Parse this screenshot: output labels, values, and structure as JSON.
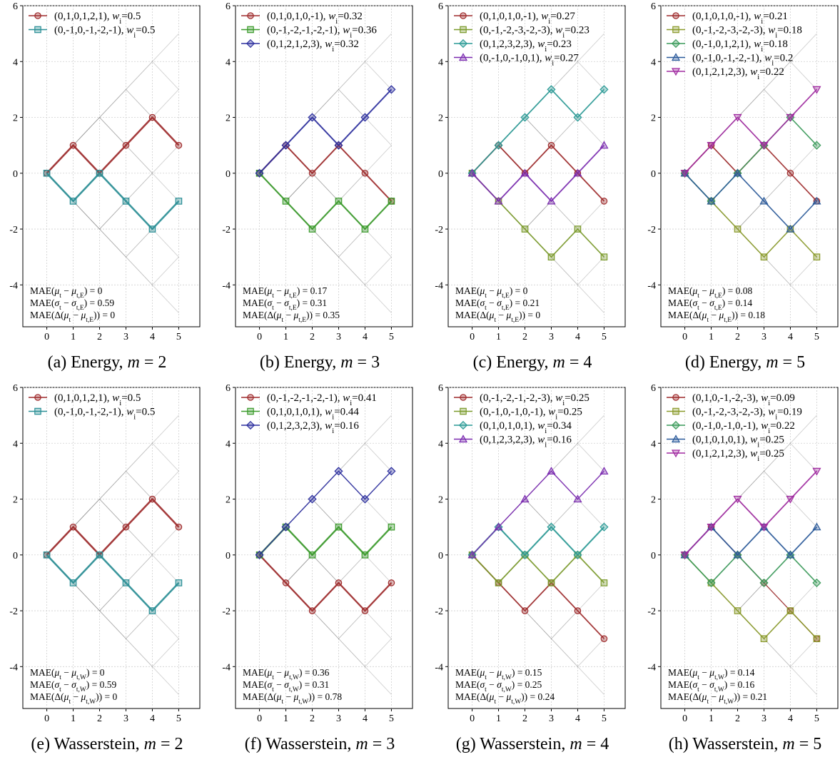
{
  "chart_data": [
    {
      "type": "line",
      "caption": "(a) Energy, m = 2",
      "x": [
        0,
        1,
        2,
        3,
        4,
        5
      ],
      "ylim": [
        -5.5,
        6
      ],
      "yticks": [
        -4,
        -2,
        0,
        2,
        4,
        6
      ],
      "series": [
        {
          "name": "(0,1,0,1,2,1), w_i=0.5",
          "path": [
            0,
            1,
            0,
            1,
            2,
            1
          ],
          "weight": 0.5,
          "color": "#9e2a2b",
          "marker": "circle"
        },
        {
          "name": "(0,-1,0,-1,-2,-1), w_i=0.5",
          "path": [
            0,
            -1,
            0,
            -1,
            -2,
            -1
          ],
          "weight": 0.5,
          "color": "#2a8f96",
          "marker": "square"
        }
      ],
      "annotations": [
        "MAE(μ_t − μ_t,E) = 0",
        "MAE(σ_t − σ_t,E) = 0.59",
        "MAE(Δ(μ_t − μ_t,E)) = 0"
      ]
    },
    {
      "type": "line",
      "caption": "(b) Energy, m = 3",
      "x": [
        0,
        1,
        2,
        3,
        4,
        5
      ],
      "ylim": [
        -5.5,
        6
      ],
      "yticks": [
        -4,
        -2,
        0,
        2,
        4,
        6
      ],
      "series": [
        {
          "name": "(0,1,0,1,0,-1), w_i=0.32",
          "path": [
            0,
            1,
            0,
            1,
            0,
            -1
          ],
          "weight": 0.32,
          "color": "#9e2a2b",
          "marker": "circle"
        },
        {
          "name": "(0,-1,-2,-1,-2,-1), w_i=0.36",
          "path": [
            0,
            -1,
            -2,
            -1,
            -2,
            -1
          ],
          "weight": 0.36,
          "color": "#3a9a2a",
          "marker": "square"
        },
        {
          "name": "(0,1,2,1,2,3), w_i=0.32",
          "path": [
            0,
            1,
            2,
            1,
            2,
            3
          ],
          "weight": 0.32,
          "color": "#2c2f9e",
          "marker": "diamond"
        }
      ],
      "annotations": [
        "MAE(μ_t − μ_t,E) = 0.17",
        "MAE(σ_t − σ_t,E) = 0.31",
        "MAE(Δ(μ_t − μ_t,E)) = 0.35"
      ]
    },
    {
      "type": "line",
      "caption": "(c) Energy, m = 4",
      "x": [
        0,
        1,
        2,
        3,
        4,
        5
      ],
      "ylim": [
        -5.5,
        6
      ],
      "yticks": [
        -4,
        -2,
        0,
        2,
        4,
        6
      ],
      "series": [
        {
          "name": "(0,1,0,1,0,-1), w_i=0.27",
          "path": [
            0,
            1,
            0,
            1,
            0,
            -1
          ],
          "weight": 0.27,
          "color": "#9e2a2b",
          "marker": "circle"
        },
        {
          "name": "(0,-1,-2,-3,-2,-3), w_i=0.23",
          "path": [
            0,
            -1,
            -2,
            -3,
            -2,
            -3
          ],
          "weight": 0.23,
          "color": "#7a9a2a",
          "marker": "square"
        },
        {
          "name": "(0,1,2,3,2,3), w_i=0.23",
          "path": [
            0,
            1,
            2,
            3,
            2,
            3
          ],
          "weight": 0.23,
          "color": "#2a9a96",
          "marker": "diamond"
        },
        {
          "name": "(0,-1,0,-1,0,1), w_i=0.27",
          "path": [
            0,
            -1,
            0,
            -1,
            0,
            1
          ],
          "weight": 0.27,
          "color": "#7a2ab0",
          "marker": "triangle-up"
        }
      ],
      "annotations": [
        "MAE(μ_t − μ_t,E) = 0",
        "MAE(σ_t − σ_t,E) = 0.21",
        "MAE(Δ(μ_t − μ_t,E)) = 0"
      ]
    },
    {
      "type": "line",
      "caption": "(d) Energy, m = 5",
      "x": [
        0,
        1,
        2,
        3,
        4,
        5
      ],
      "ylim": [
        -5.5,
        6
      ],
      "yticks": [
        -4,
        -2,
        0,
        2,
        4,
        6
      ],
      "series": [
        {
          "name": "(0,1,0,1,0,-1), w_i=0.21",
          "path": [
            0,
            1,
            0,
            1,
            0,
            -1
          ],
          "weight": 0.21,
          "color": "#9e2a2b",
          "marker": "circle"
        },
        {
          "name": "(0,-1,-2,-3,-2,-3), w_i=0.18",
          "path": [
            0,
            -1,
            -2,
            -3,
            -2,
            -3
          ],
          "weight": 0.18,
          "color": "#8a9a2a",
          "marker": "square"
        },
        {
          "name": "(0,-1,0,1,2,1), w_i=0.18",
          "path": [
            0,
            -1,
            0,
            1,
            2,
            1
          ],
          "weight": 0.18,
          "color": "#3a9a5a",
          "marker": "diamond"
        },
        {
          "name": "(0,-1,0,-1,-2,-1), w_i=0.2",
          "path": [
            0,
            -1,
            0,
            -1,
            -2,
            -1
          ],
          "weight": 0.2,
          "color": "#2a5a9a",
          "marker": "triangle-up"
        },
        {
          "name": "(0,1,2,1,2,3), w_i=0.22",
          "path": [
            0,
            1,
            2,
            1,
            2,
            3
          ],
          "weight": 0.22,
          "color": "#a02aa0",
          "marker": "triangle-down"
        }
      ],
      "annotations": [
        "MAE(μ_t − μ_t,E) = 0.08",
        "MAE(σ_t − σ_t,E) = 0.14",
        "MAE(Δ(μ_t − μ_t,E)) = 0.18"
      ]
    },
    {
      "type": "line",
      "caption": "(e) Wasserstein, m = 2",
      "x": [
        0,
        1,
        2,
        3,
        4,
        5
      ],
      "ylim": [
        -5.5,
        6
      ],
      "yticks": [
        -4,
        -2,
        0,
        2,
        4,
        6
      ],
      "series": [
        {
          "name": "(0,1,0,1,2,1), w_i=0.5",
          "path": [
            0,
            1,
            0,
            1,
            2,
            1
          ],
          "weight": 0.5,
          "color": "#9e2a2b",
          "marker": "circle"
        },
        {
          "name": "(0,-1,0,-1,-2,-1), w_i=0.5",
          "path": [
            0,
            -1,
            0,
            -1,
            -2,
            -1
          ],
          "weight": 0.5,
          "color": "#2a8f96",
          "marker": "square"
        }
      ],
      "annotations": [
        "MAE(μ_t − μ_t,W) = 0",
        "MAE(σ_t − σ_t,W) = 0.59",
        "MAE(Δ(μ_t − μ_t,W)) = 0"
      ]
    },
    {
      "type": "line",
      "caption": "(f) Wasserstein, m = 3",
      "x": [
        0,
        1,
        2,
        3,
        4,
        5
      ],
      "ylim": [
        -5.5,
        6
      ],
      "yticks": [
        -4,
        -2,
        0,
        2,
        4,
        6
      ],
      "series": [
        {
          "name": "(0,-1,-2,-1,-2,-1), w_i=0.41",
          "path": [
            0,
            -1,
            -2,
            -1,
            -2,
            -1
          ],
          "weight": 0.41,
          "color": "#9e2a2b",
          "marker": "circle"
        },
        {
          "name": "(0,1,0,1,0,1), w_i=0.44",
          "path": [
            0,
            1,
            0,
            1,
            0,
            1
          ],
          "weight": 0.44,
          "color": "#3a9a2a",
          "marker": "square"
        },
        {
          "name": "(0,1,2,3,2,3), w_i=0.16",
          "path": [
            0,
            1,
            2,
            3,
            2,
            3
          ],
          "weight": 0.16,
          "color": "#2c2f9e",
          "marker": "diamond"
        }
      ],
      "annotations": [
        "MAE(μ_t − μ_t,W) = 0.36",
        "MAE(σ_t − σ_t,W) = 0.31",
        "MAE(Δ(μ_t − μ_t,W)) = 0.78"
      ]
    },
    {
      "type": "line",
      "caption": "(g) Wasserstein, m = 4",
      "x": [
        0,
        1,
        2,
        3,
        4,
        5
      ],
      "ylim": [
        -5.5,
        6
      ],
      "yticks": [
        -4,
        -2,
        0,
        2,
        4,
        6
      ],
      "series": [
        {
          "name": "(0,-1,-2,-1,-2,-3), w_i=0.25",
          "path": [
            0,
            -1,
            -2,
            -1,
            -2,
            -3
          ],
          "weight": 0.25,
          "color": "#9e2a2b",
          "marker": "circle"
        },
        {
          "name": "(0,-1,0,-1,0,-1), w_i=0.25",
          "path": [
            0,
            -1,
            0,
            -1,
            0,
            -1
          ],
          "weight": 0.25,
          "color": "#7a9a2a",
          "marker": "square"
        },
        {
          "name": "(0,1,0,1,0,1), w_i=0.34",
          "path": [
            0,
            1,
            0,
            1,
            0,
            1
          ],
          "weight": 0.34,
          "color": "#2a9a96",
          "marker": "diamond"
        },
        {
          "name": "(0,1,2,3,2,3), w_i=0.16",
          "path": [
            0,
            1,
            2,
            3,
            2,
            3
          ],
          "weight": 0.16,
          "color": "#7a2ab0",
          "marker": "triangle-up"
        }
      ],
      "annotations": [
        "MAE(μ_t − μ_t,W) = 0.15",
        "MAE(σ_t − σ_t,W) = 0.25",
        "MAE(Δ(μ_t − μ_t,W)) = 0.24"
      ]
    },
    {
      "type": "line",
      "caption": "(h) Wasserstein, m = 5",
      "x": [
        0,
        1,
        2,
        3,
        4,
        5
      ],
      "ylim": [
        -5.5,
        6
      ],
      "yticks": [
        -4,
        -2,
        0,
        2,
        4,
        6
      ],
      "series": [
        {
          "name": "(0,1,0,-1,-2,-3), w_i=0.09",
          "path": [
            0,
            1,
            0,
            -1,
            -2,
            -3
          ],
          "weight": 0.09,
          "color": "#9e2a2b",
          "marker": "circle"
        },
        {
          "name": "(0,-1,-2,-3,-2,-3), w_i=0.19",
          "path": [
            0,
            -1,
            -2,
            -3,
            -2,
            -3
          ],
          "weight": 0.19,
          "color": "#8a9a2a",
          "marker": "square"
        },
        {
          "name": "(0,-1,0,-1,0,-1), w_i=0.22",
          "path": [
            0,
            -1,
            0,
            -1,
            0,
            -1
          ],
          "weight": 0.22,
          "color": "#3a9a5a",
          "marker": "diamond"
        },
        {
          "name": "(0,1,0,1,0,1), w_i=0.25",
          "path": [
            0,
            1,
            0,
            1,
            0,
            1
          ],
          "weight": 0.25,
          "color": "#2a5a9a",
          "marker": "triangle-up"
        },
        {
          "name": "(0,1,2,1,2,3), w_i=0.25",
          "path": [
            0,
            1,
            2,
            1,
            2,
            3
          ],
          "weight": 0.25,
          "color": "#a02aa0",
          "marker": "triangle-down"
        }
      ],
      "annotations": [
        "MAE(μ_t − μ_t,W) = 0.14",
        "MAE(σ_t − σ_t,W) = 0.16",
        "MAE(Δ(μ_t − μ_t,W)) = 0.21"
      ]
    }
  ]
}
